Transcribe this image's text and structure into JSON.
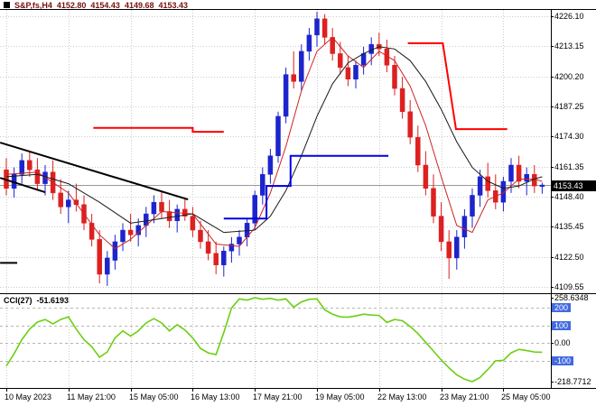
{
  "header": {
    "symbol_period": "S&P,fs,H4",
    "open": "4152.80",
    "high": "4154.43",
    "low": "4149.68",
    "close": "4153.43"
  },
  "colors": {
    "up_candle": "#1c24cc",
    "down_candle": "#dd2020",
    "ma_fast": "#cc2222",
    "ma_slow": "#1a1a1a",
    "support_line": "#0000e6",
    "resistance_line": "#ff0000",
    "cci_line": "#6ccf12",
    "grid": "#cccccc",
    "level_line": "#b5b5b5",
    "level_box_bg": "#4169e1",
    "price_tag_bg": "#000000",
    "header_text": "#7a1010",
    "current_price_line": "#999999",
    "frame": "#000000"
  },
  "price_axis": {
    "labels": [
      {
        "text": "4226.10",
        "value": 4226.1
      },
      {
        "text": "4213.15",
        "value": 4213.15
      },
      {
        "text": "4200.20",
        "value": 4200.2
      },
      {
        "text": "4187.25",
        "value": 4187.25
      },
      {
        "text": "4174.30",
        "value": 4174.3
      },
      {
        "text": "4161.35",
        "value": 4161.35
      },
      {
        "text": "4148.40",
        "value": 4148.4
      },
      {
        "text": "4135.45",
        "value": 4135.45
      },
      {
        "text": "4122.50",
        "value": 4122.5
      },
      {
        "text": "4109.55",
        "value": 4109.55
      }
    ],
    "current_price": "4153.43",
    "current_price_value": 4153.43
  },
  "time_axis": {
    "labels": [
      {
        "text": "10 May 2023",
        "bar": 0
      },
      {
        "text": "11 May 21:00",
        "bar": 8
      },
      {
        "text": "15 May 05:00",
        "bar": 16
      },
      {
        "text": "16 May 13:00",
        "bar": 24
      },
      {
        "text": "17 May 21:00",
        "bar": 32
      },
      {
        "text": "19 May 05:00",
        "bar": 40
      },
      {
        "text": "22 May 13:00",
        "bar": 48
      },
      {
        "text": "23 May 21:00",
        "bar": 56
      },
      {
        "text": "25 May 05:00",
        "bar": 64
      }
    ]
  },
  "cci_panel": {
    "name_label": "CCI(27)",
    "value_label": "-51.6193",
    "axis_labels": [
      {
        "text": "258.6348",
        "value": 258.6348,
        "boxed": false
      },
      {
        "text": "200",
        "value": 200,
        "boxed": true
      },
      {
        "text": "100",
        "value": 100,
        "boxed": true
      },
      {
        "text": "0.00",
        "value": 0,
        "boxed": false
      },
      {
        "text": "-100",
        "value": -100,
        "boxed": true
      },
      {
        "text": "-218.7712",
        "value": -218.7712,
        "boxed": false
      }
    ]
  },
  "chart_data": {
    "type": "candlestick",
    "title": "S&P,fs,H4",
    "timeframe": "H4",
    "ohlc_display": {
      "open": 4152.8,
      "high": 4154.43,
      "low": 4149.68,
      "close": 4153.43
    },
    "y_range": [
      4109.55,
      4226.1
    ],
    "candles": [
      [
        4160,
        4165,
        4149,
        4152
      ],
      [
        4152,
        4161,
        4148,
        4158
      ],
      [
        4158,
        4167,
        4154,
        4164
      ],
      [
        4164,
        4168,
        4157,
        4160
      ],
      [
        4160,
        4165,
        4151,
        4154
      ],
      [
        4154,
        4162,
        4149,
        4159
      ],
      [
        4159,
        4164,
        4147,
        4150
      ],
      [
        4150,
        4156,
        4141,
        4144
      ],
      [
        4144,
        4151,
        4137,
        4147
      ],
      [
        4147,
        4154,
        4142,
        4145
      ],
      [
        4145,
        4149,
        4134,
        4137
      ],
      [
        4137,
        4141,
        4127,
        4130
      ],
      [
        4130,
        4134,
        4111,
        4115
      ],
      [
        4115,
        4125,
        4110,
        4122
      ],
      [
        4121,
        4132,
        4117,
        4129
      ],
      [
        4129,
        4137,
        4125,
        4134
      ],
      [
        4134,
        4141,
        4129,
        4132
      ],
      [
        4132,
        4139,
        4127,
        4136
      ],
      [
        4136,
        4144,
        4131,
        4141
      ],
      [
        4141,
        4149,
        4137,
        4146
      ],
      [
        4146,
        4151,
        4139,
        4142
      ],
      [
        4142,
        4147,
        4135,
        4138
      ],
      [
        4138,
        4145,
        4133,
        4143
      ],
      [
        4143,
        4148,
        4138,
        4140
      ],
      [
        4140,
        4144,
        4131,
        4134
      ],
      [
        4134,
        4138,
        4126,
        4129
      ],
      [
        4129,
        4134,
        4121,
        4124
      ],
      [
        4124,
        4129,
        4115,
        4119
      ],
      [
        4119,
        4127,
        4114,
        4125
      ],
      [
        4125,
        4131,
        4120,
        4128
      ],
      [
        4128,
        4134,
        4123,
        4131
      ],
      [
        4131,
        4139,
        4127,
        4137
      ],
      [
        4137,
        4151,
        4134,
        4149
      ],
      [
        4149,
        4161,
        4145,
        4158
      ],
      [
        4158,
        4169,
        4154,
        4166
      ],
      [
        4166,
        4185,
        4163,
        4183
      ],
      [
        4183,
        4204,
        4180,
        4201
      ],
      [
        4201,
        4211,
        4195,
        4198
      ],
      [
        4198,
        4214,
        4194,
        4211
      ],
      [
        4211,
        4221,
        4207,
        4218
      ],
      [
        4218,
        4228,
        4213,
        4225
      ],
      [
        4225,
        4227,
        4214,
        4217
      ],
      [
        4217,
        4221,
        4207,
        4210
      ],
      [
        4210,
        4215,
        4201,
        4204
      ],
      [
        4204,
        4209,
        4196,
        4199
      ],
      [
        4199,
        4207,
        4195,
        4205
      ],
      [
        4205,
        4213,
        4201,
        4210
      ],
      [
        4210,
        4217,
        4205,
        4214
      ],
      [
        4214,
        4219,
        4209,
        4212
      ],
      [
        4212,
        4216,
        4202,
        4205
      ],
      [
        4205,
        4209,
        4192,
        4195
      ],
      [
        4195,
        4200,
        4182,
        4185
      ],
      [
        4185,
        4190,
        4171,
        4174
      ],
      [
        4174,
        4179,
        4159,
        4162
      ],
      [
        4162,
        4168,
        4149,
        4152
      ],
      [
        4152,
        4158,
        4137,
        4140
      ],
      [
        4140,
        4146,
        4125,
        4129
      ],
      [
        4129,
        4134,
        4113,
        4122
      ],
      [
        4122,
        4134,
        4117,
        4131
      ],
      [
        4131,
        4143,
        4126,
        4140
      ],
      [
        4140,
        4152,
        4135,
        4149
      ],
      [
        4149,
        4160,
        4144,
        4157
      ],
      [
        4157,
        4163,
        4148,
        4151
      ],
      [
        4151,
        4158,
        4143,
        4146
      ],
      [
        4146,
        4157,
        4142,
        4155
      ],
      [
        4155,
        4165,
        4150,
        4162
      ],
      [
        4162,
        4166,
        4152,
        4155
      ],
      [
        4155,
        4161,
        4149,
        4158
      ],
      [
        4158,
        4162,
        4150,
        4153
      ],
      [
        4152.8,
        4154.43,
        4149.68,
        4153.43
      ]
    ],
    "overlays": {
      "ma_fast": [
        [
          0,
          4158
        ],
        [
          4,
          4159
        ],
        [
          8,
          4150
        ],
        [
          12,
          4132
        ],
        [
          14,
          4126
        ],
        [
          16,
          4130
        ],
        [
          20,
          4142
        ],
        [
          24,
          4141
        ],
        [
          27,
          4128
        ],
        [
          30,
          4127
        ],
        [
          32,
          4135
        ],
        [
          34,
          4150
        ],
        [
          36,
          4170
        ],
        [
          38,
          4194
        ],
        [
          40,
          4211
        ],
        [
          42,
          4217
        ],
        [
          44,
          4209
        ],
        [
          46,
          4204
        ],
        [
          48,
          4211
        ],
        [
          50,
          4207
        ],
        [
          52,
          4196
        ],
        [
          54,
          4179
        ],
        [
          56,
          4157
        ],
        [
          58,
          4136
        ],
        [
          60,
          4133
        ],
        [
          62,
          4147
        ],
        [
          64,
          4150
        ],
        [
          66,
          4156
        ],
        [
          68,
          4156
        ],
        [
          69,
          4155
        ]
      ],
      "ma_slow": [
        [
          0,
          4157
        ],
        [
          4,
          4158
        ],
        [
          8,
          4154
        ],
        [
          12,
          4146
        ],
        [
          16,
          4137
        ],
        [
          20,
          4139
        ],
        [
          24,
          4141
        ],
        [
          28,
          4133
        ],
        [
          32,
          4134
        ],
        [
          34,
          4140
        ],
        [
          36,
          4151
        ],
        [
          38,
          4166
        ],
        [
          40,
          4183
        ],
        [
          42,
          4197
        ],
        [
          44,
          4206
        ],
        [
          46,
          4210
        ],
        [
          48,
          4213
        ],
        [
          50,
          4212
        ],
        [
          52,
          4207
        ],
        [
          54,
          4198
        ],
        [
          56,
          4186
        ],
        [
          58,
          4172
        ],
        [
          60,
          4161
        ],
        [
          62,
          4155
        ],
        [
          64,
          4152
        ],
        [
          66,
          4153
        ],
        [
          68,
          4156
        ],
        [
          69,
          4157
        ]
      ],
      "support_steps": [
        [
          28,
          4139
        ],
        [
          33.5,
          4139
        ],
        [
          33.5,
          4153
        ],
        [
          36.6,
          4153
        ],
        [
          36.6,
          4166
        ],
        [
          49.2,
          4166
        ]
      ],
      "resistance_steps_left": [
        [
          11.2,
          4178
        ],
        [
          24,
          4178
        ],
        [
          24,
          4176.3
        ],
        [
          28,
          4176.3
        ]
      ],
      "resistance_steps_right": [
        [
          51.7,
          4214.5
        ],
        [
          56.2,
          4214.5
        ],
        [
          57.9,
          4177.5
        ],
        [
          64.5,
          4177.5
        ]
      ],
      "trendlines": [
        [
          [
            -0.8,
            4171.7
          ],
          [
            23.4,
            4147.2
          ]
        ],
        [
          [
            -0.8,
            4156.5
          ],
          [
            5,
            4150.3
          ]
        ],
        [
          [
            -0.8,
            4119.9
          ],
          [
            1.4,
            4119.9
          ]
        ]
      ]
    },
    "indicator": {
      "type": "CCI",
      "period": 27,
      "current": -51.6193,
      "max": 258.6348,
      "min": -218.7712,
      "levels": [
        200,
        100,
        0,
        -100
      ],
      "values": [
        -130,
        -60,
        20,
        80,
        120,
        135,
        110,
        135,
        150,
        80,
        20,
        -20,
        -80,
        -50,
        30,
        70,
        40,
        70,
        115,
        140,
        115,
        70,
        105,
        75,
        30,
        -30,
        -55,
        -65,
        60,
        200,
        252,
        245,
        258.63,
        250,
        255,
        245,
        252,
        205,
        235,
        250,
        252,
        190,
        165,
        150,
        148,
        155,
        165,
        160,
        158,
        118,
        135,
        128,
        95,
        55,
        5,
        -45,
        -95,
        -140,
        -180,
        -205,
        -218.77,
        -195,
        -150,
        -100,
        -98,
        -55,
        -35,
        -42,
        -50,
        -51.62
      ]
    }
  }
}
